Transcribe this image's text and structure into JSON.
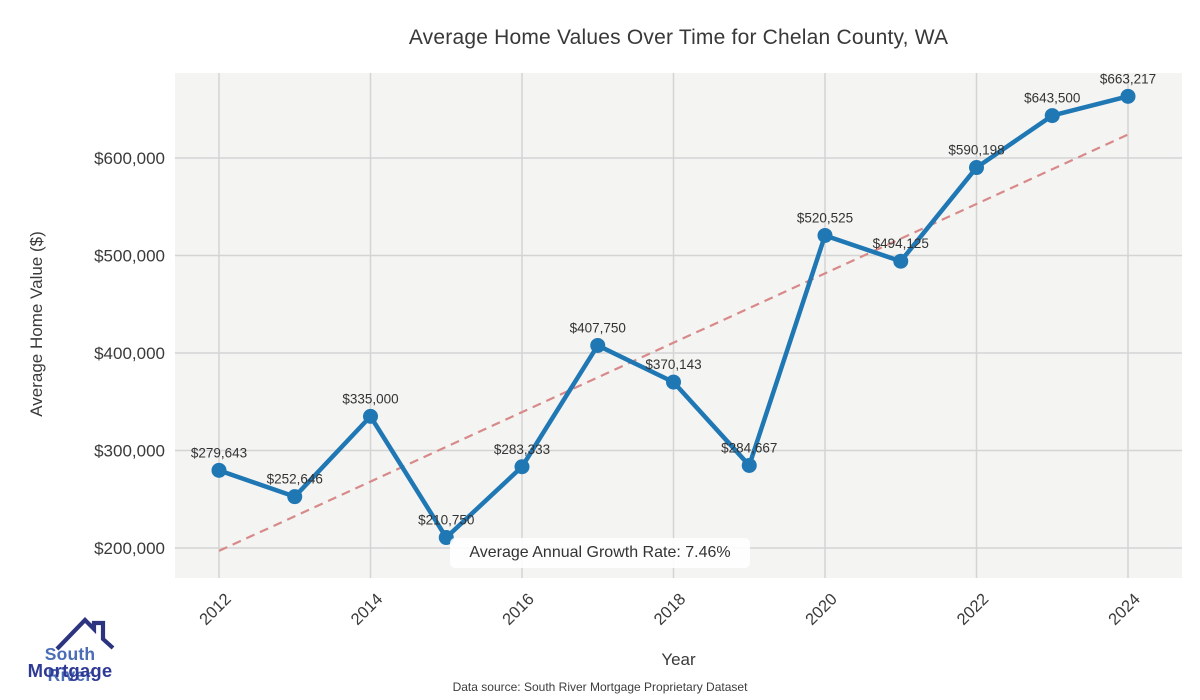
{
  "chart_data": {
    "type": "line",
    "title": "Average Home Values Over Time for Chelan County, WA",
    "xlabel": "Year",
    "ylabel": "Average Home Value ($)",
    "x": [
      2012,
      2013,
      2014,
      2015,
      2016,
      2017,
      2018,
      2019,
      2020,
      2021,
      2022,
      2023,
      2024
    ],
    "values": [
      279643,
      252646,
      335000,
      210750,
      283333,
      407750,
      370143,
      284667,
      520525,
      494125,
      590198,
      643500,
      663217
    ],
    "point_labels": [
      "$279,643",
      "$252,646",
      "$335,000",
      "$210,750",
      "$283,333",
      "$407,750",
      "$370,143",
      "$284,667",
      "$520,525",
      "$494,125",
      "$590,198",
      "$643,500",
      "$663,217"
    ],
    "xticks": [
      2012,
      2014,
      2016,
      2018,
      2020,
      2022,
      2024
    ],
    "yticks": [
      200000,
      300000,
      400000,
      500000,
      600000
    ],
    "ytick_labels": [
      "$200,000",
      "$300,000",
      "$400,000",
      "$500,000",
      "$600,000"
    ],
    "ylim": [
      180000,
      685000
    ],
    "grid": true,
    "legend": "none",
    "trend": {
      "style": "dashed",
      "start": {
        "x": 2012,
        "y": 197000
      },
      "end": {
        "x": 2024,
        "y": 624000
      }
    },
    "annotation": "Average Annual Growth Rate: 7.46%"
  },
  "branding": {
    "line1": "South River",
    "line2": "Mortgage"
  },
  "footer": {
    "source": "Data source: South River Mortgage Proprietary Dataset"
  },
  "colors": {
    "line": "#1f77b4",
    "marker": "#1f77b4",
    "trend": "#d88a8a",
    "plot_bg": "#f4f4f2",
    "grid": "#d4d4d4",
    "tick_text": "#3a3a3a",
    "label_text": "#333333",
    "logo_roof": "#2c3480",
    "logo_primary": "#4a6db6",
    "logo_secondary": "#2f3a96"
  }
}
